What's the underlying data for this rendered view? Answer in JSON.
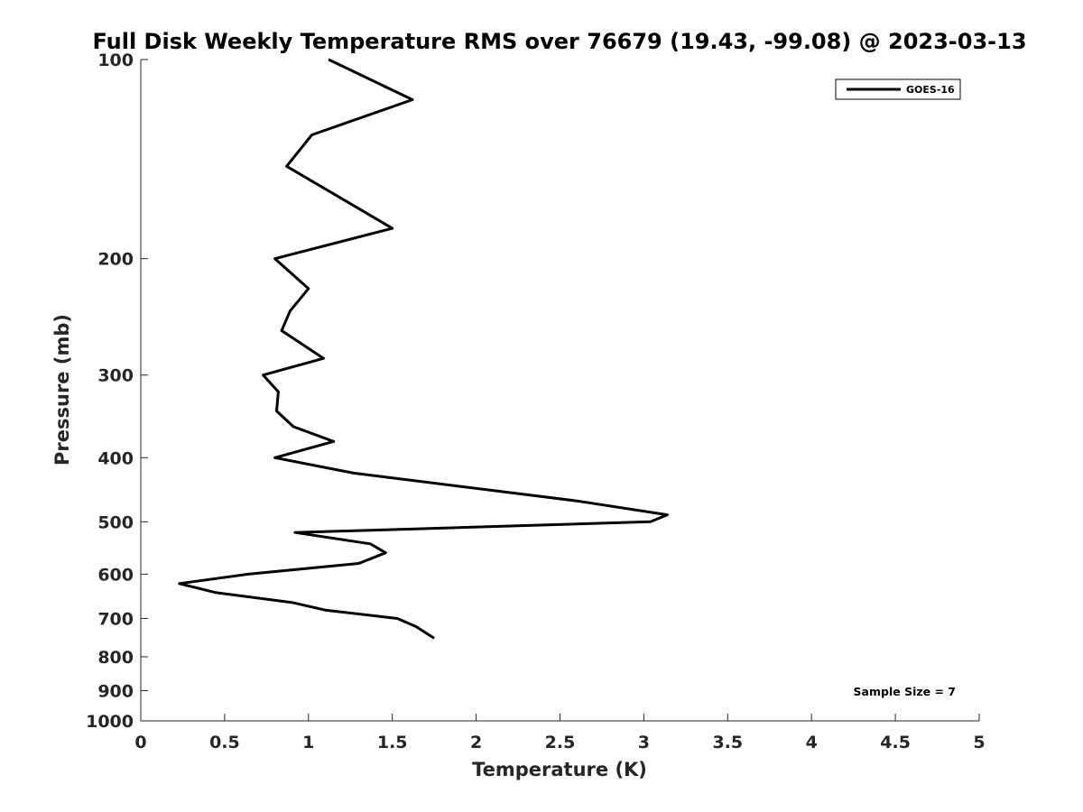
{
  "chart_data": {
    "type": "line",
    "title": "Full Disk Weekly Temperature RMS over 76679 (19.43, -99.08) @ 2023-03-13",
    "xlabel": "Temperature (K)",
    "ylabel": "Pressure (mb)",
    "xlim": [
      0,
      5
    ],
    "ylim": [
      1000,
      100
    ],
    "yscale": "log",
    "y_reversed": true,
    "x_ticks": [
      0,
      0.5,
      1,
      1.5,
      2,
      2.5,
      3,
      3.5,
      4,
      4.5,
      5
    ],
    "x_tick_labels": [
      "0",
      "0.5",
      "1",
      "1.5",
      "2",
      "2.5",
      "3",
      "3.5",
      "4",
      "4.5",
      "5"
    ],
    "y_ticks": [
      100,
      200,
      300,
      400,
      500,
      600,
      700,
      800,
      900,
      1000
    ],
    "y_tick_labels": [
      "100",
      "200",
      "300",
      "400",
      "500",
      "600",
      "700",
      "800",
      "900",
      "1000"
    ],
    "grid": false,
    "legend_position": "top-right",
    "series": [
      {
        "name": "GOES-16",
        "color": "#000000",
        "points": [
          {
            "x": 1.12,
            "y": 100
          },
          {
            "x": 1.62,
            "y": 115
          },
          {
            "x": 1.02,
            "y": 130
          },
          {
            "x": 0.87,
            "y": 145
          },
          {
            "x": 1.5,
            "y": 180
          },
          {
            "x": 0.8,
            "y": 200
          },
          {
            "x": 1.0,
            "y": 222
          },
          {
            "x": 0.89,
            "y": 240
          },
          {
            "x": 0.84,
            "y": 257
          },
          {
            "x": 1.09,
            "y": 283
          },
          {
            "x": 0.73,
            "y": 300
          },
          {
            "x": 0.82,
            "y": 318
          },
          {
            "x": 0.81,
            "y": 340
          },
          {
            "x": 0.91,
            "y": 359
          },
          {
            "x": 1.15,
            "y": 378
          },
          {
            "x": 0.8,
            "y": 400
          },
          {
            "x": 1.27,
            "y": 422
          },
          {
            "x": 2.6,
            "y": 465
          },
          {
            "x": 3.14,
            "y": 488
          },
          {
            "x": 3.04,
            "y": 500
          },
          {
            "x": 0.92,
            "y": 519
          },
          {
            "x": 1.37,
            "y": 540
          },
          {
            "x": 1.46,
            "y": 557
          },
          {
            "x": 1.3,
            "y": 578
          },
          {
            "x": 0.64,
            "y": 600
          },
          {
            "x": 0.23,
            "y": 620
          },
          {
            "x": 0.45,
            "y": 640
          },
          {
            "x": 0.9,
            "y": 662
          },
          {
            "x": 1.1,
            "y": 680
          },
          {
            "x": 1.53,
            "y": 700
          },
          {
            "x": 1.64,
            "y": 720
          },
          {
            "x": 1.75,
            "y": 750
          }
        ]
      }
    ],
    "annotations": [
      {
        "text": "Sample Size = 7",
        "position": "bottom-right"
      }
    ]
  }
}
